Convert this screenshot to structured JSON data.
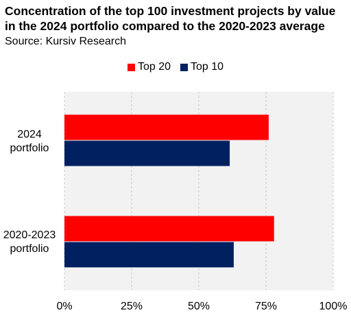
{
  "title": "Concentration of the top 100 investment projects by value in the 2024 portfolio compared to the 2020-2023 average",
  "subtitle": "Source: Kursiv Research",
  "chart_data": {
    "type": "bar",
    "orientation": "horizontal",
    "categories": [
      "2024\nportfolio",
      "2020-2023\nportfolio"
    ],
    "series": [
      {
        "name": "Top 20",
        "color": "#ff0000",
        "values": [
          76,
          78
        ]
      },
      {
        "name": "Top 10",
        "color": "#002060",
        "values": [
          61.5,
          63
        ]
      }
    ],
    "x_ticks": [
      "0%",
      "25%",
      "50%",
      "75%",
      "100%"
    ],
    "xlim": [
      0,
      100
    ],
    "unit": "%",
    "grid": "vertical dashed",
    "legend_position": "top"
  }
}
